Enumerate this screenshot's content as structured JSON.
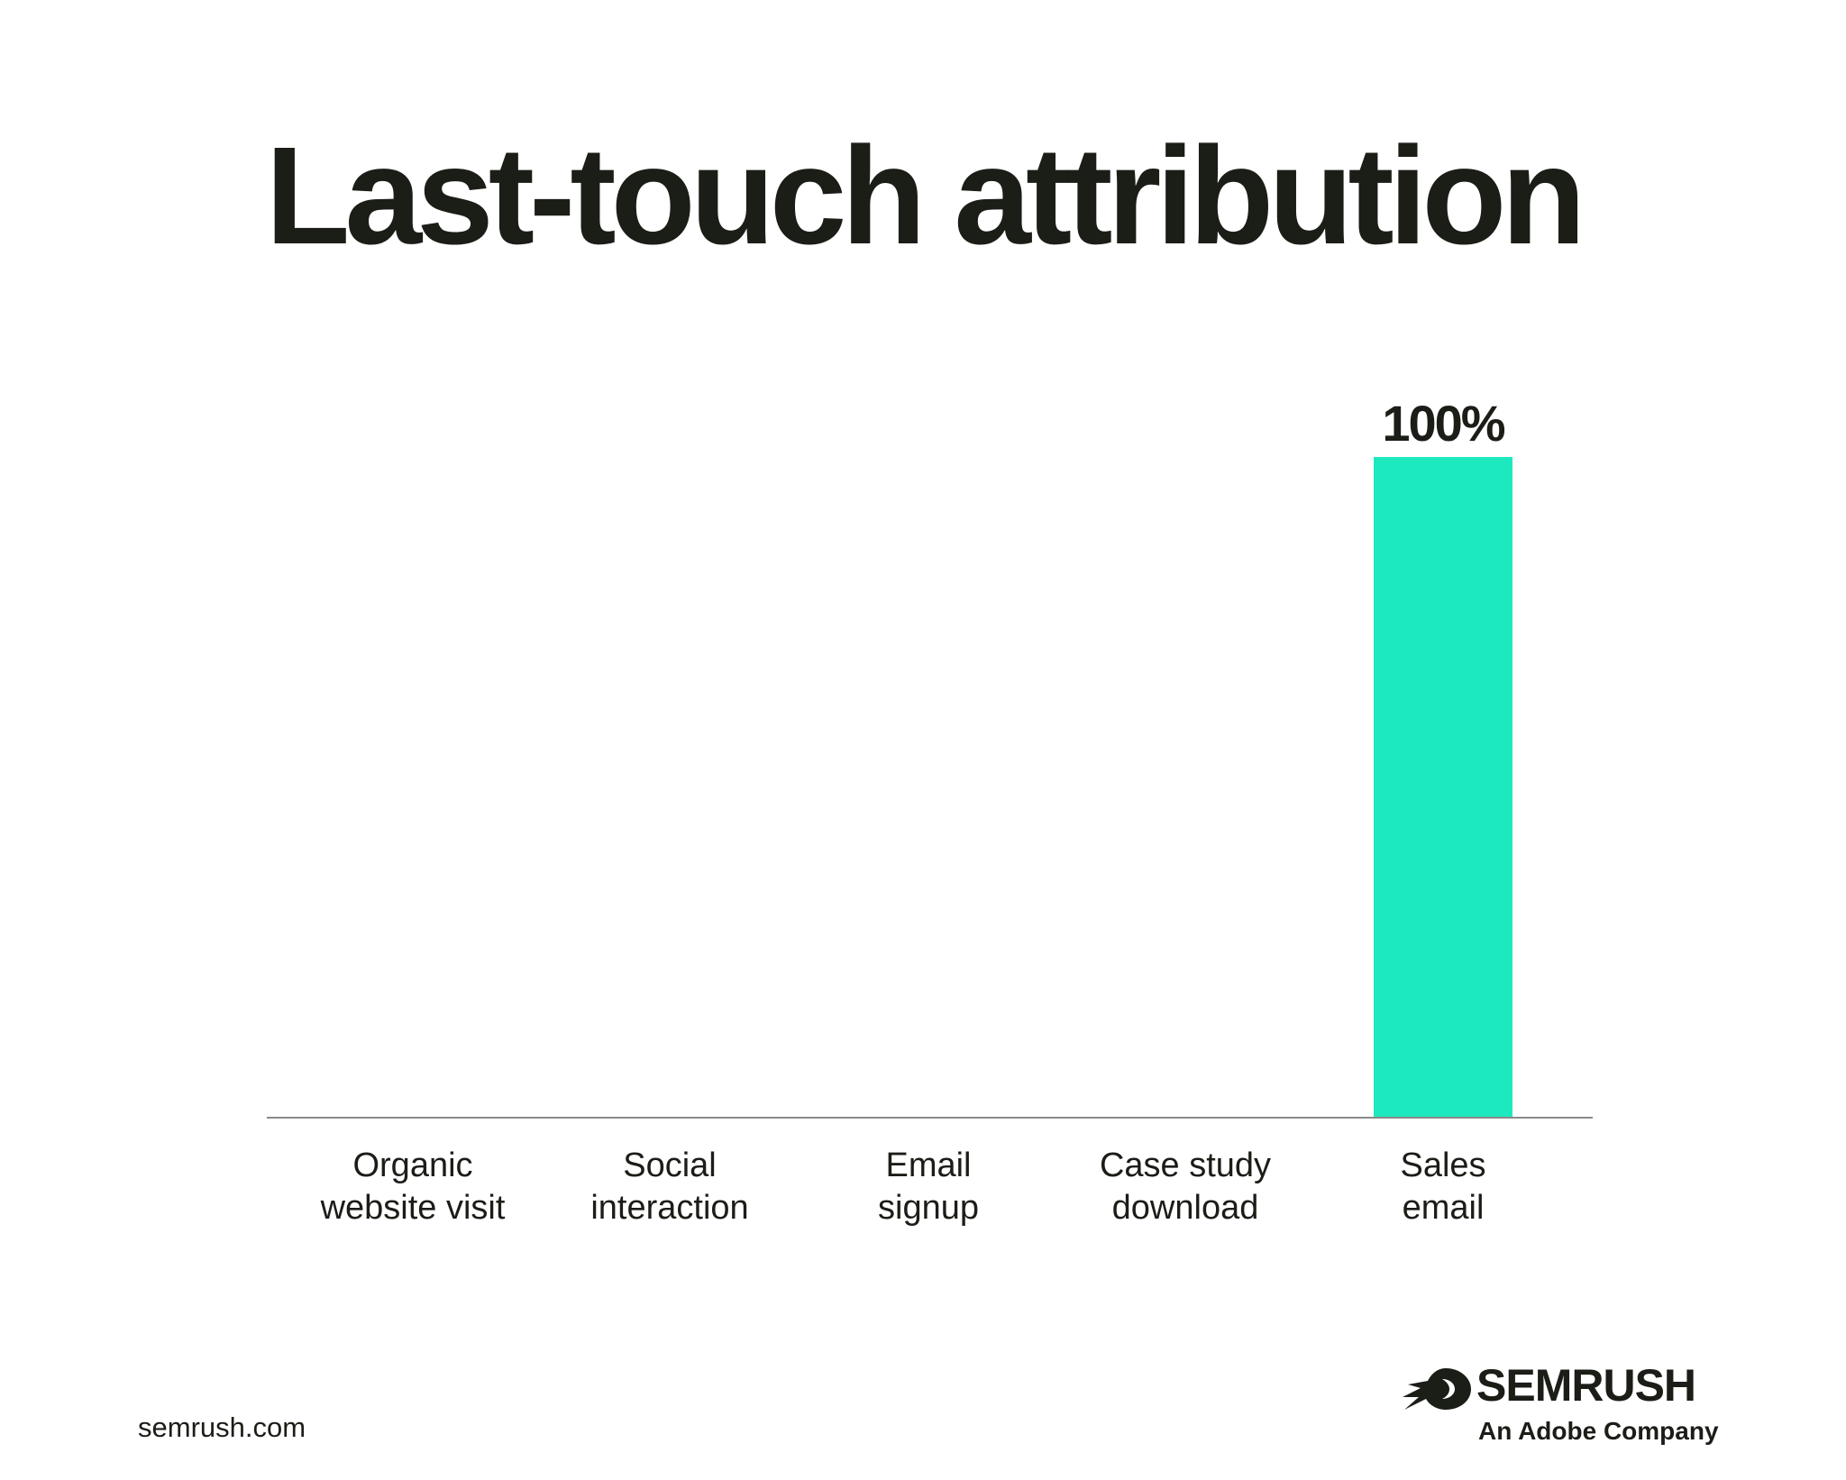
{
  "chart_data": {
    "type": "bar",
    "title": "Last-touch attribution",
    "categories": [
      "Organic website visit",
      "Social interaction",
      "Email signup",
      "Case study download",
      "Sales email"
    ],
    "category_lines": [
      [
        "Organic",
        "website visit"
      ],
      [
        "Social",
        "interaction"
      ],
      [
        "Email",
        "signup"
      ],
      [
        "Case study",
        "download"
      ],
      [
        "Sales",
        "email"
      ]
    ],
    "values": [
      0,
      0,
      0,
      0,
      100
    ],
    "data_labels": [
      "",
      "",
      "",
      "",
      "100%"
    ],
    "ylim": [
      0,
      100
    ],
    "xlabel": "",
    "ylabel": "",
    "grid": false,
    "bar_color": "#1de9bf",
    "axis_color": "#8a8a8a"
  },
  "footer": {
    "url": "semrush.com",
    "brand": "SEMRUSH",
    "brand_tagline": "An Adobe Company"
  },
  "icons": {
    "brand_logo": "semrush-fireball-icon"
  }
}
